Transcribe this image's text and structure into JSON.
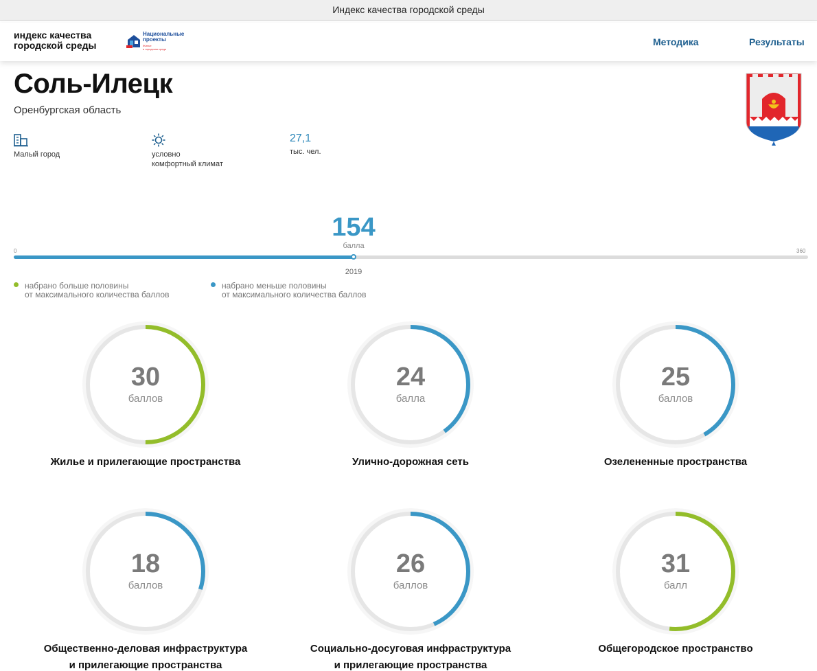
{
  "window": {
    "title": "Индекс качества городской среды"
  },
  "header": {
    "logo_line1": "индекс качества",
    "logo_line2": "городской среды",
    "np_line1": "Национальные",
    "np_line2": "проекты",
    "np_sub1": "Жилье",
    "np_sub2": "и городская среда",
    "nav": [
      "Методика",
      "Результаты"
    ]
  },
  "city": {
    "name": "Соль-Илецк",
    "region": "Оренбургская область"
  },
  "stats": [
    {
      "icon": "building-icon",
      "label": "Малый город"
    },
    {
      "icon": "sun-icon",
      "label_line1": "условно",
      "label_line2": "комфортный климат"
    },
    {
      "value": "27,1",
      "label": "тыс. чел."
    }
  ],
  "score": {
    "total": "154",
    "unit": "балла",
    "min": "0",
    "max": "360",
    "total_value": 154,
    "max_value": 360,
    "year": "2019"
  },
  "legend": [
    {
      "color": "#93bd2a",
      "line1": "набрано больше половины",
      "line2": "от максимального количества баллов"
    },
    {
      "color": "#3a97c6",
      "line1": "набрано меньше половины",
      "line2": "от максимального количества баллов"
    }
  ],
  "categories": [
    {
      "value": "30",
      "fraction": 0.5,
      "unit": "баллов",
      "color": "#93bd2a",
      "line1": "Жилье и прилегающие пространства",
      "line2": ""
    },
    {
      "value": "24",
      "fraction": 0.4,
      "unit": "балла",
      "color": "#3a97c6",
      "line1": "Улично-дорожная сеть",
      "line2": ""
    },
    {
      "value": "25",
      "fraction": 0.4167,
      "unit": "баллов",
      "color": "#3a97c6",
      "line1": "Озелененные пространства",
      "line2": ""
    },
    {
      "value": "18",
      "fraction": 0.3,
      "unit": "баллов",
      "color": "#3a97c6",
      "line1": "Общественно-деловая инфраструктура",
      "line2": "и прилегающие пространства"
    },
    {
      "value": "26",
      "fraction": 0.4333,
      "unit": "баллов",
      "color": "#3a97c6",
      "line1": "Социально-досуговая инфраструктура",
      "line2": "и прилегающие пространства"
    },
    {
      "value": "31",
      "fraction": 0.5167,
      "unit": "балл",
      "color": "#93bd2a",
      "line1": "Общегородское пространство",
      "line2": ""
    }
  ]
}
